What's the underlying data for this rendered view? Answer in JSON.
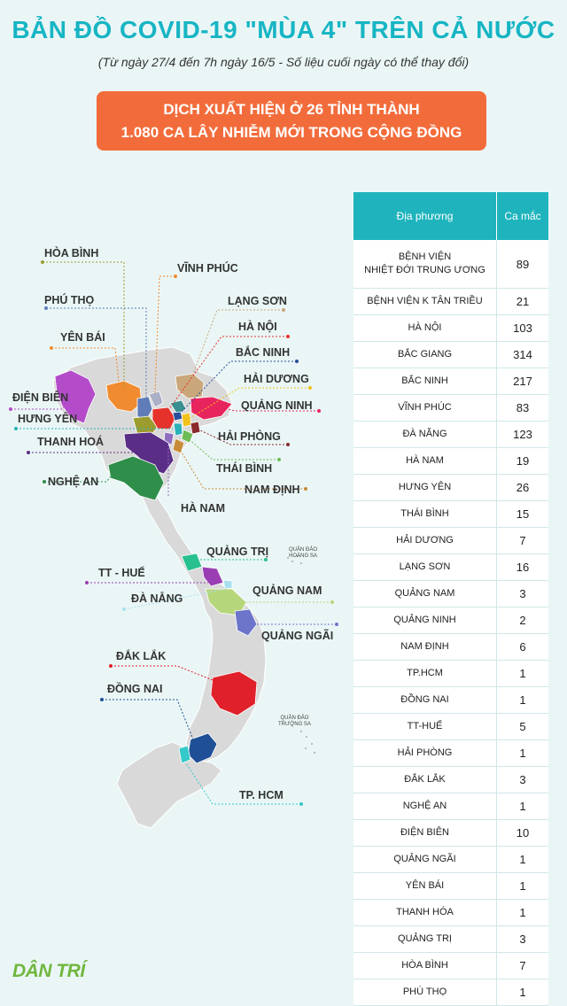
{
  "header": {
    "title": "BẢN ĐỒ COVID-19 \"MÙA 4\" TRÊN CẢ NƯỚC",
    "subtitle": "(Từ ngày 27/4 đến 7h ngày 16/5 - Số liệu cuối ngày có thể thay đổi)"
  },
  "banner": {
    "line1": "DỊCH XUẤT HIỆN Ở 26 TỈNH THÀNH",
    "line2": "1.080 CA LÂY NHIỄM MỚI TRONG CỘNG ĐỒNG"
  },
  "map": {
    "labels": {
      "hoa_binh": "HÒA BÌNH",
      "vinh_phuc": "VĨNH PHÚC",
      "phu_tho": "PHÚ THỌ",
      "lang_son": "LẠNG SƠN",
      "yen_bai": "YÊN BÁI",
      "ha_noi": "HÀ NỘI",
      "bac_ninh": "BẮC NINH",
      "dien_bien": "ĐIỆN BIÊN",
      "hai_duong": "HẢI DƯƠNG",
      "hung_yen": "HƯNG YÊN",
      "quang_ninh": "QUẢNG NINH",
      "thanh_hoa": "THANH HOÁ",
      "hai_phong": "HẢI PHÒNG",
      "nghe_an": "NGHỆ AN",
      "thai_binh": "THÁI BÌNH",
      "nam_dinh": "NAM ĐỊNH",
      "ha_nam": "HÀ NAM",
      "quang_tri": "QUẢNG TRỊ",
      "tt_hue": "TT - HUẾ",
      "quang_nam": "QUẢNG NAM",
      "da_nang": "ĐÀ NẴNG",
      "quang_ngai": "QUẢNG NGÃI",
      "dak_lak": "ĐẮK LẮK",
      "dong_nai": "ĐỒNG NAI",
      "tp_hcm": "TP. HCM"
    },
    "islands": {
      "hoang_sa_1": "QUẦN ĐẢO",
      "hoang_sa_2": "HOÀNG SA",
      "truong_sa_1": "QUẦN ĐẢO",
      "truong_sa_2": "TRƯỜNG SA"
    }
  },
  "table": {
    "header": {
      "place": "Địa phương",
      "cases": "Ca mắc"
    },
    "rows": [
      {
        "place": "BỆNH VIỆN\nNHIỆT ĐỚI TRUNG ƯƠNG",
        "cases": "89"
      },
      {
        "place": "BỆNH VIỆN K TÂN TRIỀU",
        "cases": "21"
      },
      {
        "place": "HÀ NỘI",
        "cases": "103"
      },
      {
        "place": "BẮC GIANG",
        "cases": "314"
      },
      {
        "place": "BẮC NINH",
        "cases": "217"
      },
      {
        "place": "VĨNH PHÚC",
        "cases": "83"
      },
      {
        "place": "ĐÀ NẴNG",
        "cases": "123"
      },
      {
        "place": "HÀ NAM",
        "cases": "19"
      },
      {
        "place": "HƯNG YÊN",
        "cases": "26"
      },
      {
        "place": "THÁI BÌNH",
        "cases": "15"
      },
      {
        "place": "HẢI DƯƠNG",
        "cases": "7"
      },
      {
        "place": "LẠNG SƠN",
        "cases": "16"
      },
      {
        "place": "QUẢNG NAM",
        "cases": "3"
      },
      {
        "place": "QUẢNG NINH",
        "cases": "2"
      },
      {
        "place": "NAM ĐỊNH",
        "cases": "6"
      },
      {
        "place": "TP.HCM",
        "cases": "1"
      },
      {
        "place": "ĐỒNG NAI",
        "cases": "1"
      },
      {
        "place": "TT-HUẾ",
        "cases": "5"
      },
      {
        "place": "HẢI PHÒNG",
        "cases": "1"
      },
      {
        "place": "ĐẮK LẮK",
        "cases": "3"
      },
      {
        "place": "NGHỆ AN",
        "cases": "1"
      },
      {
        "place": "ĐIỆN BIÊN",
        "cases": "10"
      },
      {
        "place": "QUẢNG NGÃI",
        "cases": "1"
      },
      {
        "place": "YÊN BÁI",
        "cases": "1"
      },
      {
        "place": "THANH HÓA",
        "cases": "1"
      },
      {
        "place": "QUẢNG TRỊ",
        "cases": "3"
      },
      {
        "place": "HÒA BÌNH",
        "cases": "7"
      },
      {
        "place": "PHÚ THỌ",
        "cases": "1"
      }
    ]
  },
  "logo": "DÂN TRÍ",
  "colors": {
    "title": "#17b5c4",
    "banner": "#f26c3b",
    "table_header": "#1fb4bd",
    "land": "#d9d9d9"
  }
}
